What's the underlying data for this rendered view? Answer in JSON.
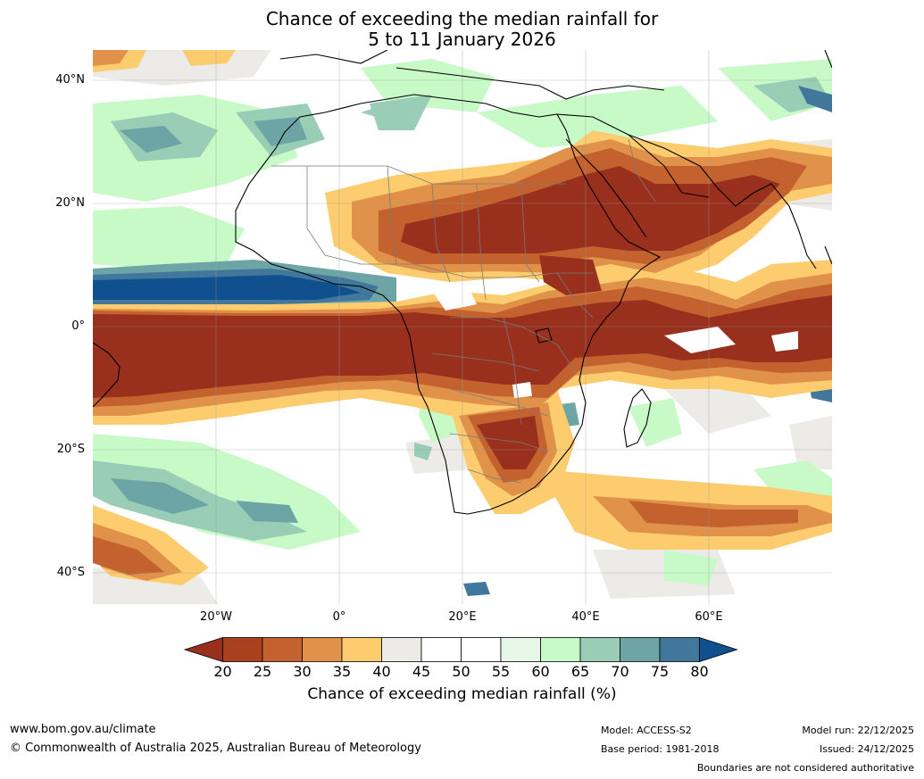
{
  "title": {
    "line1": "Chance of exceeding the median rainfall for",
    "line2": "5 to 11 January 2026"
  },
  "map": {
    "lat_labels": [
      "40°N",
      "20°N",
      "0°",
      "20°S",
      "40°S"
    ],
    "lon_labels": [
      "20°W",
      "0°",
      "20°E",
      "40°E",
      "60°E"
    ]
  },
  "colorbar": {
    "title": "Chance of exceeding median rainfall (%)",
    "ticks": [
      "20",
      "25",
      "30",
      "35",
      "40",
      "45",
      "50",
      "55",
      "60",
      "65",
      "70",
      "75",
      "80"
    ],
    "colors": [
      "#98301d",
      "#a9411f",
      "#c4622f",
      "#e0924a",
      "#fdcc6e",
      "#edebe7",
      "#ffffff",
      "#ffffff",
      "#e6f7e8",
      "#c8fac8",
      "#99cdb6",
      "#6da5a6",
      "#41779b"
    ],
    "under_color": "#98301d",
    "over_color": "#11508e"
  },
  "footer": {
    "website": "www.bom.gov.au/climate",
    "copyright": "© Commonwealth of Australia 2025, Australian Bureau of Meteorology",
    "model": "Model: ACCESS-S2",
    "base_period": "Base period: 1981-2018",
    "model_run": "Model run: 22/12/2025",
    "issued": "Issued: 24/12/2025",
    "disclaimer": "Boundaries are not considered authoritative"
  }
}
